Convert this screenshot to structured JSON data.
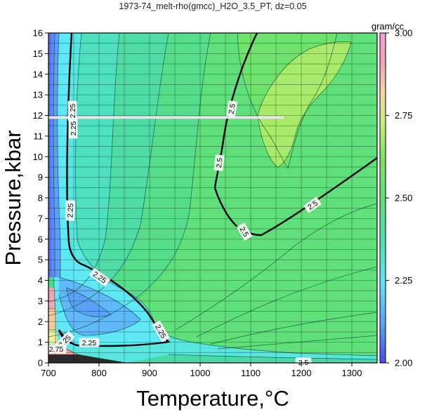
{
  "chart_data": {
    "type": "heatmap",
    "title": "1973-74_melt-rho(gmcc)_H2O_3.5_PT, dz=0.05",
    "xlabel": "Temperature,°C",
    "ylabel": "Pressure,kbar",
    "xlim": [
      700,
      1350
    ],
    "ylim": [
      0,
      16
    ],
    "x_ticks": [
      "700",
      "800",
      "900",
      "1000",
      "1100",
      "1200",
      "1300"
    ],
    "y_ticks": [
      "0",
      "1",
      "2",
      "3",
      "4",
      "5",
      "6",
      "7",
      "8",
      "9",
      "10",
      "11",
      "12",
      "13",
      "14",
      "15",
      "16"
    ],
    "grid": true,
    "colorbar": {
      "units": "gram/cc",
      "range": [
        2.0,
        3.0
      ],
      "ticks": [
        "2.00",
        "2.25",
        "2.50",
        "2.75",
        "3.00"
      ]
    },
    "contour_interval": 0.05,
    "labeled_contours": [
      {
        "level": "2.25",
        "labels": [
          "2.25",
          "2.25",
          "2.25",
          "2.25",
          "2.25",
          "2.25",
          "2.25"
        ]
      },
      {
        "level": "2.5",
        "labels": [
          "2.5",
          "2.5",
          "2.5",
          "2.5",
          "2.5"
        ]
      },
      {
        "level": "2.75",
        "labels": [
          "2.75"
        ]
      }
    ],
    "highlight_line": {
      "pressure": 11.9,
      "t_start": 700,
      "t_end": 1165,
      "color": "#e8e8e8"
    }
  }
}
